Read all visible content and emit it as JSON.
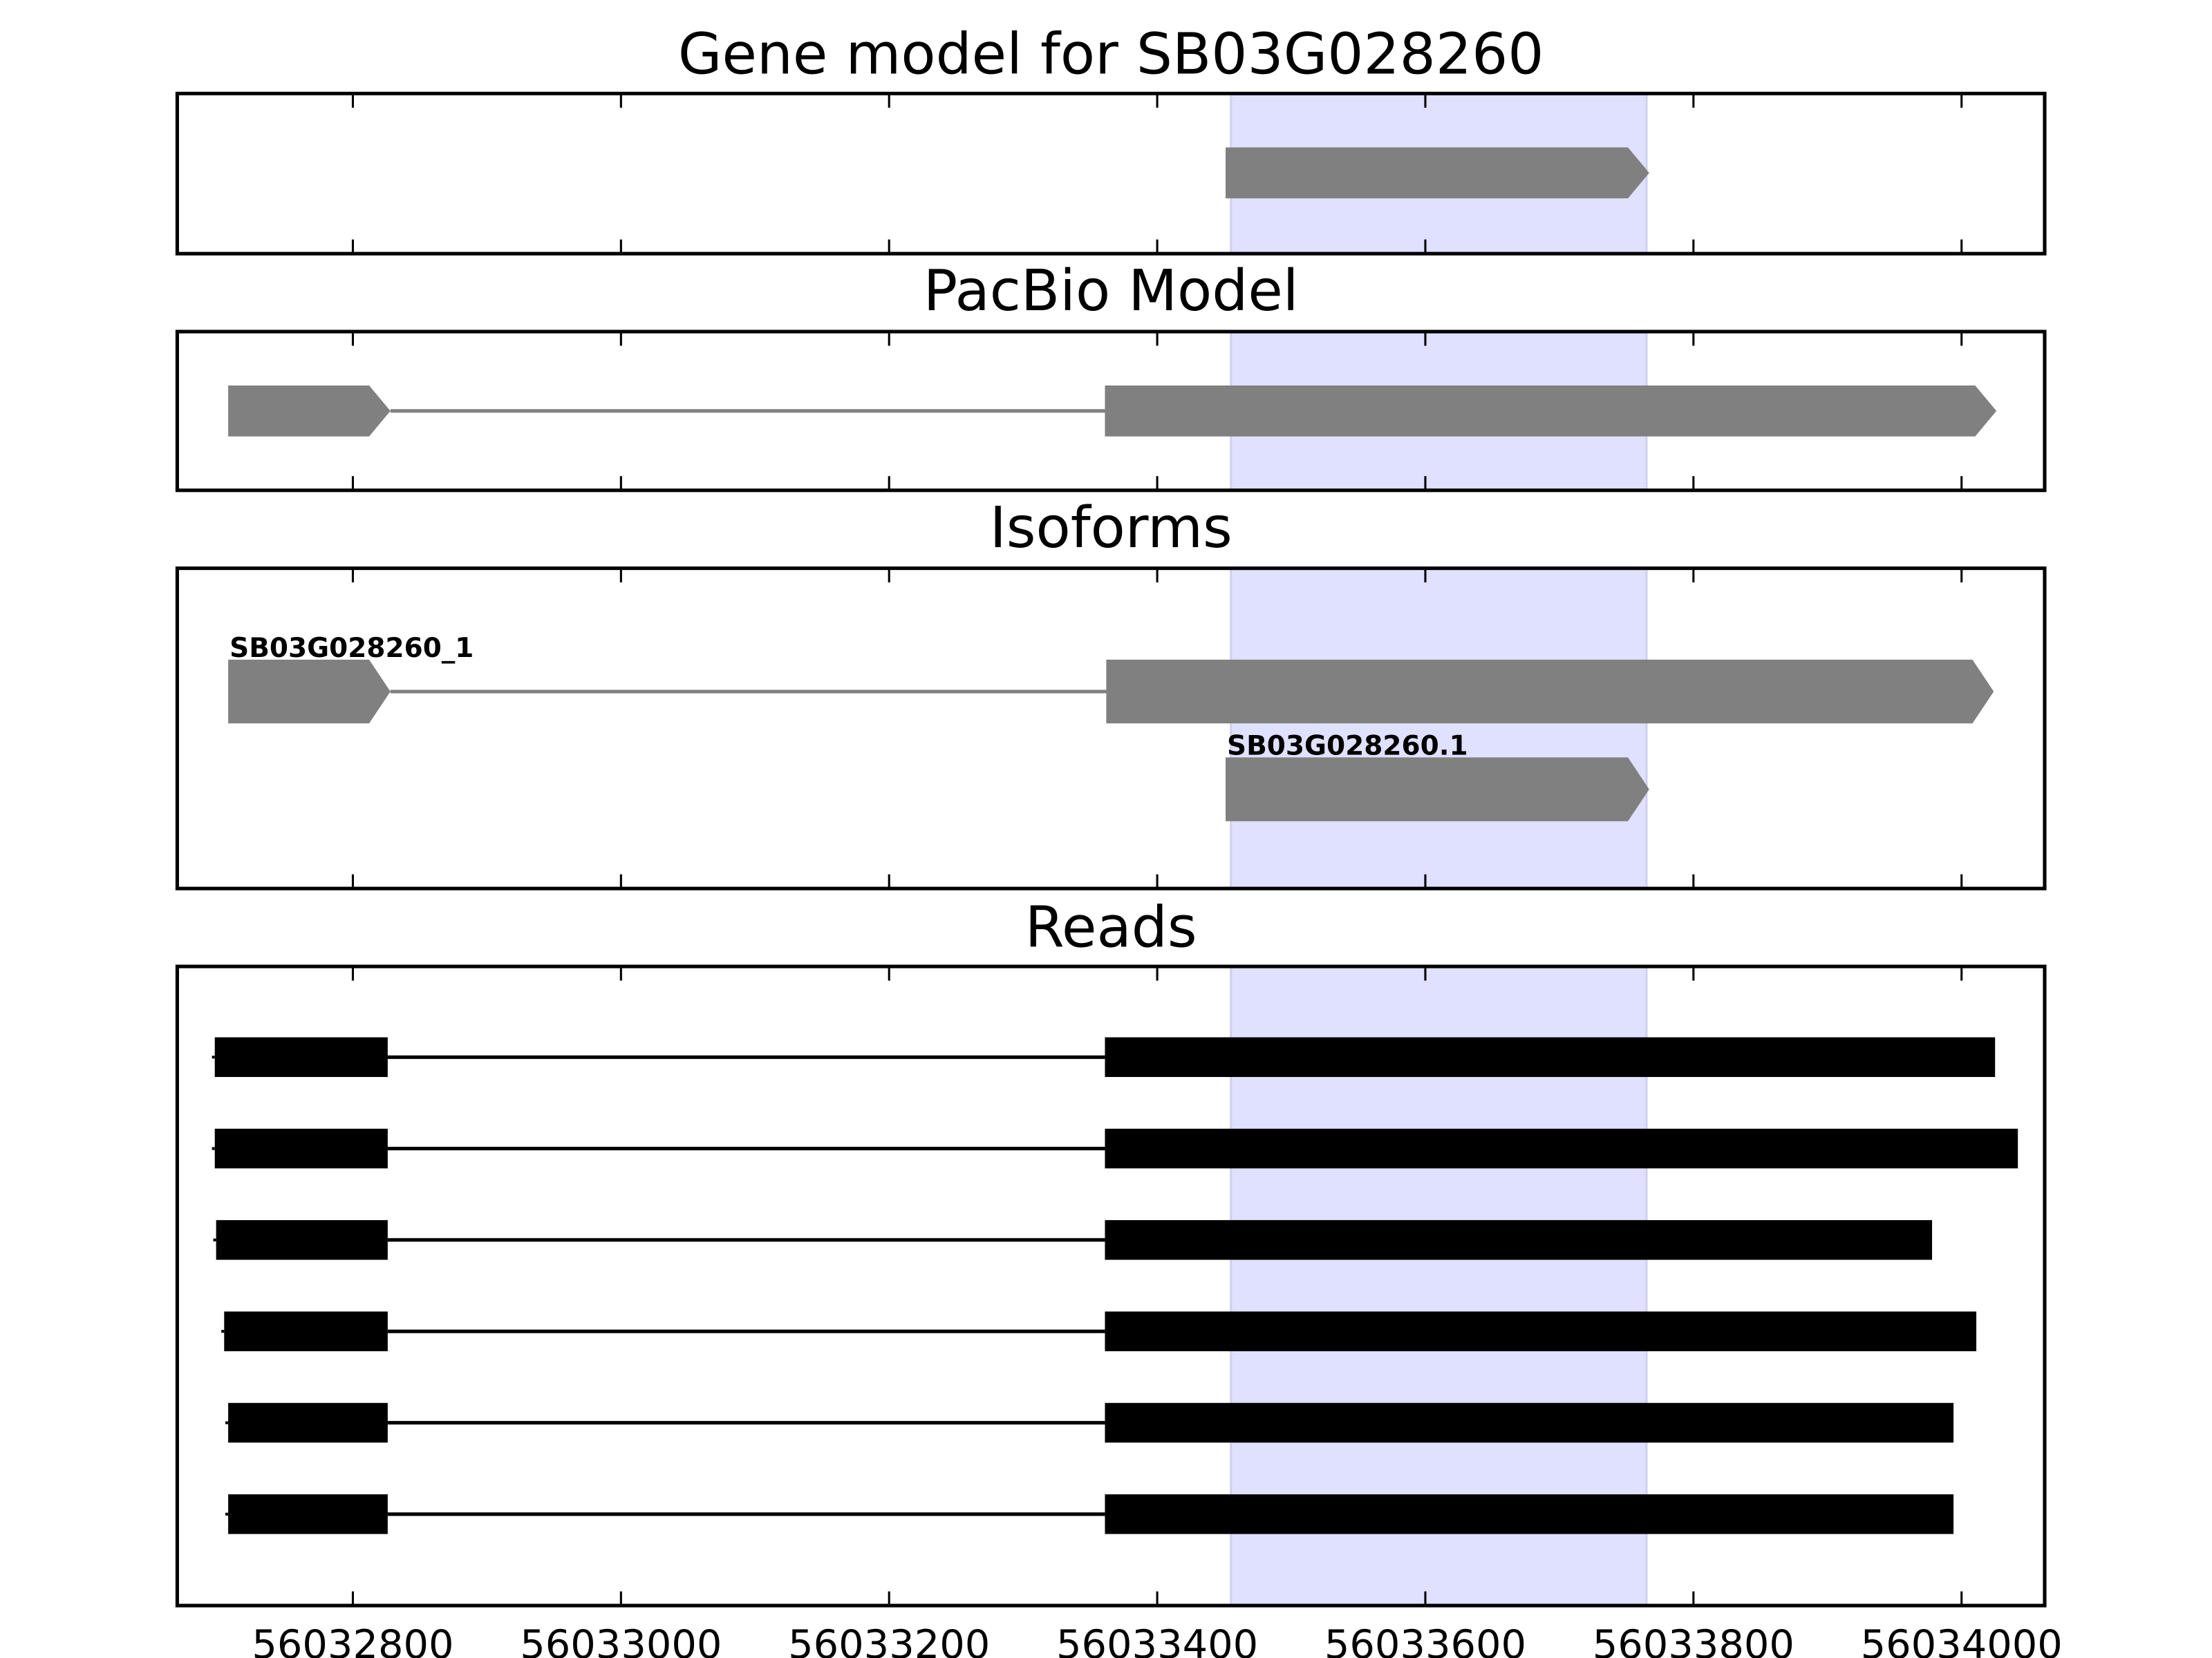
{
  "chart_data": {
    "type": "gene-track",
    "xlim": [
      56032669,
      56034062
    ],
    "x_ticks": [
      56032800,
      56033000,
      56033200,
      56033400,
      56033600,
      56033800,
      56034000
    ],
    "highlight": {
      "start": 56033455,
      "end": 56033765,
      "color": "#e0e0ff"
    },
    "colors": {
      "model": "#808080",
      "reads": "#000000"
    },
    "panels": [
      {
        "title": "Gene model for SB03G028260",
        "features": [
          {
            "label": "",
            "strand": "+",
            "exons": [
              [
                56033451,
                56033767
              ]
            ]
          }
        ]
      },
      {
        "title": "PacBio Model",
        "features": [
          {
            "label": "",
            "strand": "+",
            "exons": [
              [
                56032707,
                56032828
              ],
              [
                56033361,
                56034026
              ]
            ]
          }
        ]
      },
      {
        "title": "Isoforms",
        "features": [
          {
            "label": "SB03G028260_1",
            "strand": "+",
            "exons": [
              [
                56032707,
                56032828
              ],
              [
                56033362,
                56034024
              ]
            ]
          },
          {
            "label": "SB03G028260.1",
            "strand": "+",
            "exons": [
              [
                56033451,
                56033767
              ]
            ]
          }
        ]
      },
      {
        "title": "Reads",
        "reads": [
          [
            [
              56032697,
              56032826
            ],
            [
              56033361,
              56034025
            ]
          ],
          [
            [
              56032697,
              56032826
            ],
            [
              56033361,
              56034042
            ]
          ],
          [
            [
              56032698,
              56032826
            ],
            [
              56033361,
              56033978
            ]
          ],
          [
            [
              56032704,
              56032826
            ],
            [
              56033361,
              56034011
            ]
          ],
          [
            [
              56032707,
              56032826
            ],
            [
              56033361,
              56033994
            ]
          ],
          [
            [
              56032707,
              56032826
            ],
            [
              56033361,
              56033994
            ]
          ]
        ]
      }
    ]
  }
}
